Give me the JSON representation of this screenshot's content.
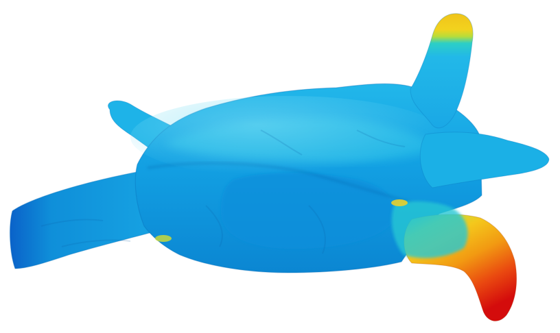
{
  "scene": {
    "subject": "3d-vessel-mesh-colormap",
    "background_color": "#ffffff",
    "colormap": {
      "low": "#0a6fd6",
      "mid_low": "#16a9e6",
      "mid": "#26c9c9",
      "mid_high": "#f0d020",
      "high": "#e01010"
    }
  }
}
